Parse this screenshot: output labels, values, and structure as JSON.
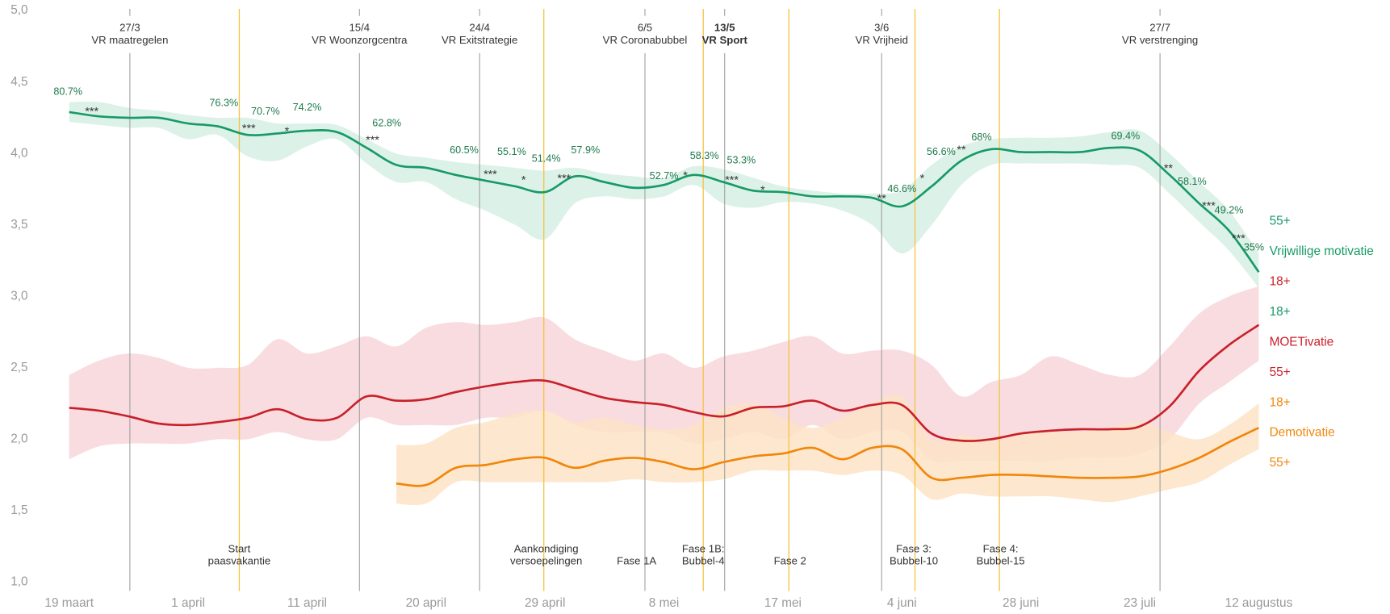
{
  "chart_data": {
    "type": "line",
    "xlim": [
      0,
      10
    ],
    "xticks": [
      {
        "value": 0,
        "label": "19 maart"
      },
      {
        "value": 1,
        "label": "1 april"
      },
      {
        "value": 2,
        "label": "11 april"
      },
      {
        "value": 3,
        "label": "20 april"
      },
      {
        "value": 4,
        "label": "29 april"
      },
      {
        "value": 5,
        "label": "8 mei"
      },
      {
        "value": 6,
        "label": "17 mei"
      },
      {
        "value": 7,
        "label": "4 juni"
      },
      {
        "value": 8,
        "label": "28 juni"
      },
      {
        "value": 9,
        "label": "23 juli"
      },
      {
        "value": 10,
        "label": "12 augustus"
      }
    ],
    "ylim": [
      1,
      5
    ],
    "yticks": [
      {
        "value": 1,
        "label": "1,0"
      },
      {
        "value": 1.5,
        "label": "1,5"
      },
      {
        "value": 2,
        "label": "2,0"
      },
      {
        "value": 2.5,
        "label": "2,5"
      },
      {
        "value": 3,
        "label": "3,0"
      },
      {
        "value": 3.5,
        "label": "3,5"
      },
      {
        "value": 4,
        "label": "4,0"
      },
      {
        "value": 4.5,
        "label": "4,5"
      },
      {
        "value": 5,
        "label": "5,0"
      }
    ],
    "x": [
      0,
      0.25,
      0.5,
      0.75,
      1,
      1.25,
      1.5,
      1.75,
      2,
      2.25,
      2.5,
      2.75,
      3,
      3.25,
      3.5,
      3.75,
      4,
      4.25,
      4.5,
      4.75,
      5,
      5.25,
      5.5,
      5.75,
      6,
      6.25,
      6.5,
      6.75,
      7,
      7.25,
      7.5,
      7.75,
      8,
      8.25,
      8.5,
      8.75,
      9,
      9.25,
      9.5,
      9.75,
      10
    ],
    "series": [
      {
        "name": "Vrijwillige motivatie",
        "color": "#169a66",
        "band_color": "#d6efe4",
        "label_above": "55+",
        "label_below": "18+",
        "values": [
          4.29,
          4.26,
          4.25,
          4.25,
          4.21,
          4.19,
          4.13,
          4.14,
          4.16,
          4.15,
          4.04,
          3.92,
          3.9,
          3.85,
          3.81,
          3.77,
          3.73,
          3.84,
          3.8,
          3.76,
          3.78,
          3.85,
          3.8,
          3.74,
          3.73,
          3.7,
          3.7,
          3.69,
          3.63,
          3.77,
          3.95,
          4.03,
          4.01,
          4.01,
          4.01,
          4.04,
          4.02,
          3.85,
          3.65,
          3.46,
          3.17
        ],
        "upper": [
          4.36,
          4.36,
          4.32,
          4.3,
          4.27,
          4.25,
          4.25,
          4.21,
          4.21,
          4.2,
          4.1,
          4.0,
          3.97,
          3.94,
          3.92,
          3.9,
          3.88,
          3.9,
          3.86,
          3.84,
          3.83,
          3.91,
          3.89,
          3.83,
          3.77,
          3.74,
          3.72,
          3.72,
          3.74,
          3.92,
          4.05,
          4.1,
          4.11,
          4.11,
          4.12,
          4.15,
          4.16,
          4.0,
          3.8,
          3.6,
          3.3
        ],
        "lower": [
          4.22,
          4.2,
          4.18,
          4.18,
          4.1,
          4.13,
          3.98,
          3.95,
          4.05,
          4.1,
          3.93,
          3.8,
          3.8,
          3.68,
          3.6,
          3.5,
          3.4,
          3.65,
          3.7,
          3.68,
          3.7,
          3.78,
          3.65,
          3.62,
          3.66,
          3.65,
          3.6,
          3.5,
          3.3,
          3.5,
          3.78,
          3.92,
          3.93,
          3.93,
          3.93,
          3.92,
          3.9,
          3.72,
          3.52,
          3.32,
          3.06
        ]
      },
      {
        "name": "MOETivatie",
        "color": "#c8202a",
        "band_color": "#f7d6da",
        "label_above": "18+",
        "label_below": "55+",
        "values": [
          2.22,
          2.2,
          2.16,
          2.11,
          2.1,
          2.12,
          2.15,
          2.21,
          2.14,
          2.15,
          2.3,
          2.27,
          2.28,
          2.33,
          2.37,
          2.4,
          2.41,
          2.35,
          2.29,
          2.26,
          2.24,
          2.19,
          2.16,
          2.22,
          2.23,
          2.27,
          2.2,
          2.24,
          2.24,
          2.04,
          1.99,
          2.0,
          2.04,
          2.06,
          2.07,
          2.07,
          2.09,
          2.23,
          2.48,
          2.66,
          2.8
        ],
        "upper": [
          2.45,
          2.55,
          2.6,
          2.57,
          2.5,
          2.5,
          2.52,
          2.7,
          2.6,
          2.65,
          2.72,
          2.65,
          2.78,
          2.82,
          2.8,
          2.82,
          2.85,
          2.7,
          2.62,
          2.55,
          2.6,
          2.5,
          2.58,
          2.62,
          2.68,
          2.72,
          2.6,
          2.62,
          2.62,
          2.52,
          2.3,
          2.4,
          2.45,
          2.58,
          2.52,
          2.45,
          2.45,
          2.65,
          2.88,
          3.0,
          3.07
        ],
        "lower": [
          1.86,
          1.95,
          1.97,
          1.97,
          1.97,
          2.0,
          2.0,
          2.05,
          2.0,
          2.0,
          2.15,
          2.1,
          2.1,
          2.1,
          2.15,
          2.15,
          2.2,
          2.1,
          2.05,
          2.05,
          2.05,
          1.97,
          2.0,
          2.05,
          2.0,
          2.1,
          2.0,
          2.05,
          2.05,
          1.85,
          1.85,
          1.85,
          1.85,
          1.85,
          1.87,
          1.87,
          1.9,
          2.0,
          2.25,
          2.4,
          2.55
        ]
      },
      {
        "name": "Demotivatie",
        "color": "#f0860a",
        "band_color": "#fde3c6",
        "label_above": "18+",
        "label_below": "55+",
        "values": [
          null,
          null,
          null,
          null,
          null,
          null,
          null,
          null,
          null,
          null,
          null,
          1.69,
          1.68,
          1.8,
          1.82,
          1.86,
          1.87,
          1.8,
          1.85,
          1.87,
          1.84,
          1.79,
          1.84,
          1.88,
          1.9,
          1.94,
          1.86,
          1.94,
          1.93,
          1.73,
          1.73,
          1.75,
          1.75,
          1.74,
          1.73,
          1.73,
          1.74,
          1.79,
          1.87,
          1.98,
          2.08
        ],
        "upper": [
          null,
          null,
          null,
          null,
          null,
          null,
          null,
          null,
          null,
          null,
          null,
          1.96,
          1.97,
          2.08,
          2.12,
          2.18,
          2.2,
          2.12,
          2.15,
          2.1,
          2.07,
          2.1,
          2.22,
          2.25,
          2.15,
          2.08,
          2.15,
          2.25,
          2.3,
          2.0,
          2.03,
          2.0,
          2.05,
          2.05,
          2.05,
          2.08,
          2.12,
          2.05,
          2.0,
          2.1,
          2.25
        ],
        "lower": [
          null,
          null,
          null,
          null,
          null,
          null,
          null,
          null,
          null,
          null,
          null,
          1.55,
          1.55,
          1.7,
          1.7,
          1.7,
          1.7,
          1.7,
          1.7,
          1.72,
          1.7,
          1.7,
          1.72,
          1.78,
          1.78,
          1.78,
          1.75,
          1.78,
          1.75,
          1.58,
          1.62,
          1.6,
          1.6,
          1.6,
          1.58,
          1.56,
          1.6,
          1.65,
          1.7,
          1.82,
          1.93
        ]
      }
    ],
    "events": [
      {
        "x": 0.51,
        "date": "27/3",
        "label": "VR maatregelen",
        "bold": false
      },
      {
        "x": 2.44,
        "date": "15/4",
        "label": "VR Woonzorgcentra",
        "bold": false
      },
      {
        "x": 3.45,
        "date": "24/4",
        "label": "VR Exitstrategie",
        "bold": false
      },
      {
        "x": 4.84,
        "date": "6/5",
        "label": "VR Coronabubbel",
        "bold": false
      },
      {
        "x": 5.51,
        "date": "13/5",
        "label": "VR Sport",
        "bold": true
      },
      {
        "x": 6.83,
        "date": "3/6",
        "label": "VR Vrijheid",
        "bold": false
      },
      {
        "x": 9.17,
        "date": "27/7",
        "label": "VR verstrenging",
        "bold": false
      }
    ],
    "event_color": "#a0a0a0",
    "phase_lines": [
      1.43,
      3.99,
      5.33,
      6.05,
      7.11,
      7.82
    ],
    "phase_color": "#f6c343",
    "phases": [
      {
        "x": 1.43,
        "lines": [
          "Start",
          "paasvakantie"
        ]
      },
      {
        "x": 4.01,
        "lines": [
          "Aankondiging",
          "versoepelingen"
        ]
      },
      {
        "x": 4.77,
        "lines": [
          "Fase 1A"
        ]
      },
      {
        "x": 5.33,
        "lines": [
          "Fase 1B:",
          "Bubbel-4"
        ]
      },
      {
        "x": 6.06,
        "lines": [
          "Fase 2"
        ]
      },
      {
        "x": 7.1,
        "lines": [
          "Fase 3:",
          "Bubbel-10"
        ]
      },
      {
        "x": 7.83,
        "lines": [
          "Fase 4:",
          "Bubbel-15"
        ]
      }
    ],
    "percent_labels": [
      {
        "x": -0.01,
        "y": 4.43,
        "text": "80.7%"
      },
      {
        "x": 1.3,
        "y": 4.35,
        "text": "76.3%"
      },
      {
        "x": 1.65,
        "y": 4.29,
        "text": "70.7%"
      },
      {
        "x": 2.0,
        "y": 4.32,
        "text": "74.2%"
      },
      {
        "x": 2.67,
        "y": 4.21,
        "text": "62.8%"
      },
      {
        "x": 3.32,
        "y": 4.02,
        "text": "60.5%"
      },
      {
        "x": 3.72,
        "y": 4.01,
        "text": "55.1%"
      },
      {
        "x": 4.01,
        "y": 3.96,
        "text": "51.4%"
      },
      {
        "x": 4.34,
        "y": 4.02,
        "text": "57.9%"
      },
      {
        "x": 5.0,
        "y": 3.84,
        "text": "52.7%"
      },
      {
        "x": 5.34,
        "y": 3.98,
        "text": "58.3%"
      },
      {
        "x": 5.65,
        "y": 3.95,
        "text": "53.3%"
      },
      {
        "x": 7.0,
        "y": 3.75,
        "text": "46.6%"
      },
      {
        "x": 7.33,
        "y": 4.01,
        "text": "56.6%"
      },
      {
        "x": 7.67,
        "y": 4.11,
        "text": "68%"
      },
      {
        "x": 8.88,
        "y": 4.12,
        "text": "69.4%"
      },
      {
        "x": 9.44,
        "y": 3.8,
        "text": "58.1%"
      },
      {
        "x": 9.75,
        "y": 3.6,
        "text": "49.2%"
      },
      {
        "x": 9.96,
        "y": 3.34,
        "text": "35%"
      }
    ],
    "significance_labels": [
      {
        "x": 0.19,
        "y": 4.31,
        "text": "***"
      },
      {
        "x": 1.51,
        "y": 4.19,
        "text": "***"
      },
      {
        "x": 1.83,
        "y": 4.17,
        "text": "*"
      },
      {
        "x": 2.55,
        "y": 4.11,
        "text": "***"
      },
      {
        "x": 3.54,
        "y": 3.87,
        "text": "***"
      },
      {
        "x": 3.82,
        "y": 3.83,
        "text": "*"
      },
      {
        "x": 4.16,
        "y": 3.84,
        "text": "***"
      },
      {
        "x": 5.18,
        "y": 3.86,
        "text": "*"
      },
      {
        "x": 5.57,
        "y": 3.83,
        "text": "***"
      },
      {
        "x": 5.83,
        "y": 3.76,
        "text": "*"
      },
      {
        "x": 6.83,
        "y": 3.7,
        "text": "**"
      },
      {
        "x": 7.17,
        "y": 3.84,
        "text": "*"
      },
      {
        "x": 7.5,
        "y": 4.04,
        "text": "**"
      },
      {
        "x": 9.24,
        "y": 3.91,
        "text": "**"
      },
      {
        "x": 9.58,
        "y": 3.65,
        "text": "***"
      },
      {
        "x": 9.83,
        "y": 3.42,
        "text": "***"
      }
    ]
  }
}
